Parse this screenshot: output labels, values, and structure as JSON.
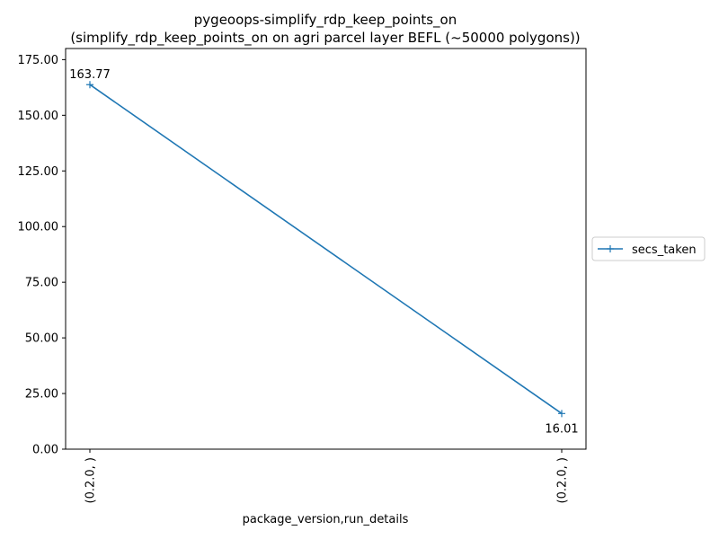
{
  "chart_data": {
    "type": "line",
    "title": "pygeoops-simplify_rdp_keep_points_on",
    "subtitle": "(simplify_rdp_keep_points_on on agri parcel layer BEFL (~50000 polygons))",
    "xlabel": "package_version,run_details",
    "ylabel": "",
    "categories": [
      "(0.2.0, )",
      "(0.2.0, )"
    ],
    "series": [
      {
        "name": "secs_taken",
        "values": [
          163.77,
          16.01
        ],
        "data_labels": [
          "163.77",
          "16.01"
        ],
        "color": "#1f77b4",
        "marker": "plus"
      }
    ],
    "ylim": [
      0,
      180
    ],
    "yticks": [
      0,
      25,
      50,
      75,
      100,
      125,
      150,
      175
    ],
    "ytick_labels": [
      "0.00",
      "25.00",
      "50.00",
      "75.00",
      "100.00",
      "125.00",
      "150.00",
      "175.00"
    ],
    "grid": false,
    "legend_position": "outside-right"
  }
}
